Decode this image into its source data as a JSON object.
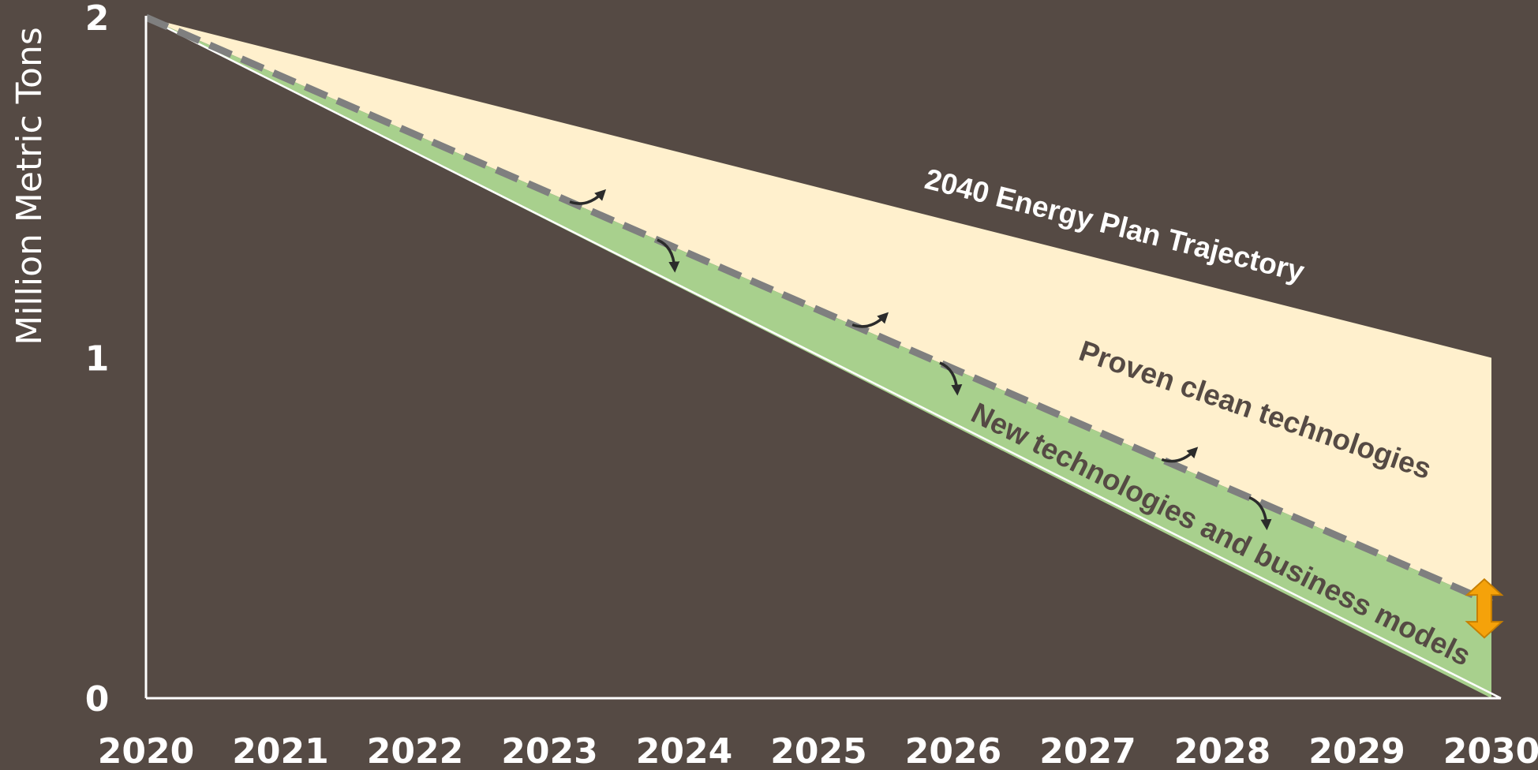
{
  "chart_data": {
    "type": "area",
    "x": [
      2020,
      2021,
      2022,
      2023,
      2024,
      2025,
      2026,
      2027,
      2028,
      2029,
      2030
    ],
    "xtick_labels": [
      "2020",
      "2021",
      "2022",
      "2023",
      "2024",
      "2025",
      "2026",
      "2027",
      "2028",
      "2029",
      "2030"
    ],
    "ylabel": "Million Metric Tons",
    "ylim": [
      0,
      2
    ],
    "yticks": [
      0,
      1,
      2
    ],
    "ytick_labels": [
      "0",
      "1",
      "2"
    ],
    "grid": false,
    "series": [
      {
        "name": "2040 Energy Plan Trajectory",
        "x": [
          2020,
          2030
        ],
        "values": [
          2.0,
          1.0
        ]
      },
      {
        "name": "",
        "style": "dashed",
        "x": [
          2020,
          2030
        ],
        "values": [
          2.0,
          0.28
        ]
      },
      {
        "name": "",
        "x": [
          2020,
          2030
        ],
        "values": [
          2.0,
          0.0
        ]
      }
    ],
    "bands": [
      {
        "label": "Proven clean technologies",
        "color": "#fff0cd",
        "between": [
          "2040 Energy Plan Trajectory",
          "dashed"
        ]
      },
      {
        "label": "New technologies and business models",
        "color": "#a8d08d",
        "between": [
          "dashed",
          "floor"
        ]
      }
    ],
    "annotations": {
      "energy_plan": "2040 Energy Plan Trajectory",
      "proven": "Proven clean technologies",
      "new_tech": "New technologies and business models"
    },
    "colors": {
      "background": "#554a44",
      "proven_band": "#fff0cd",
      "new_band": "#a8d08d",
      "dashed": "#7f7f7f",
      "axis": "#ffffff",
      "arrow": "#2b2b2b",
      "double_arrow": "#f5a20a"
    }
  }
}
